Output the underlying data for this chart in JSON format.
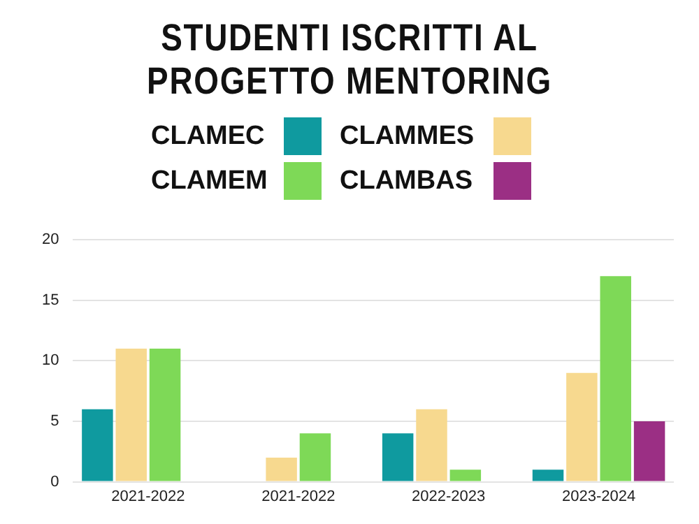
{
  "chart_data": {
    "type": "bar",
    "title": "STUDENTI ISCRITTI AL\nPROGETTO MENTORING",
    "categories": [
      "2021-2022",
      "2021-2022",
      "2022-2023",
      "2023-2024"
    ],
    "series": [
      {
        "name": "CLAMEC",
        "color": "#0f9a9f",
        "values": [
          6,
          0,
          4,
          1
        ]
      },
      {
        "name": "CLAMMES",
        "color": "#f7d98f",
        "values": [
          11,
          2,
          6,
          9
        ]
      },
      {
        "name": "CLAMEM",
        "color": "#7ed957",
        "values": [
          11,
          4,
          1,
          17
        ]
      },
      {
        "name": "CLAMBAS",
        "color": "#9b2f84",
        "values": [
          0,
          0,
          0,
          5
        ]
      }
    ],
    "ylim": [
      0,
      20
    ],
    "yticks": [
      0,
      5,
      10,
      15,
      20
    ],
    "grid": "y",
    "legend": "top"
  }
}
